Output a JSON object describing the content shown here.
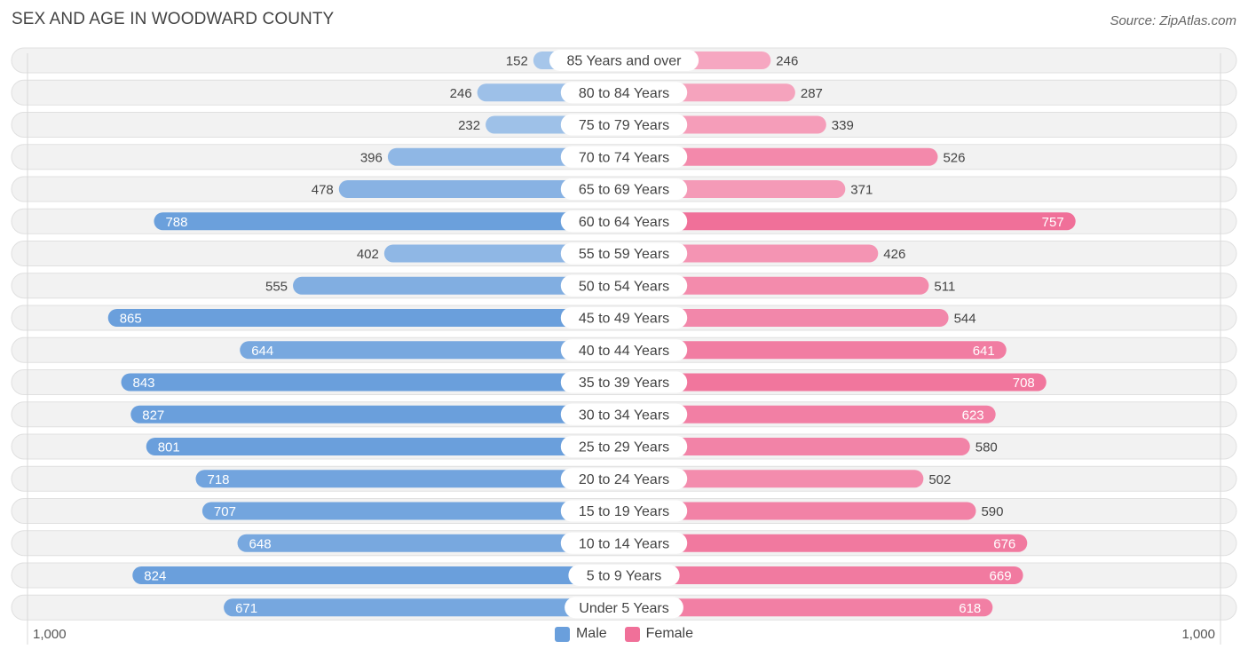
{
  "chart_data": {
    "type": "bar",
    "orientation": "horizontal-butterfly",
    "title": "SEX AND AGE IN WOODWARD COUNTY",
    "source": "Source: ZipAtlas.com",
    "categories": [
      "85 Years and over",
      "80 to 84 Years",
      "75 to 79 Years",
      "70 to 74 Years",
      "65 to 69 Years",
      "60 to 64 Years",
      "55 to 59 Years",
      "50 to 54 Years",
      "45 to 49 Years",
      "40 to 44 Years",
      "35 to 39 Years",
      "30 to 34 Years",
      "25 to 29 Years",
      "20 to 24 Years",
      "15 to 19 Years",
      "10 to 14 Years",
      "5 to 9 Years",
      "Under 5 Years"
    ],
    "series": [
      {
        "name": "Male",
        "color": "#6a9fdc",
        "color_light": "#a6c6ea",
        "values": [
          152,
          246,
          232,
          396,
          478,
          788,
          402,
          555,
          865,
          644,
          843,
          827,
          801,
          718,
          707,
          648,
          824,
          671
        ]
      },
      {
        "name": "Female",
        "color": "#f07099",
        "color_light": "#f6a8c1",
        "values": [
          246,
          287,
          339,
          526,
          371,
          757,
          426,
          511,
          544,
          641,
          708,
          623,
          580,
          502,
          590,
          676,
          669,
          618
        ]
      }
    ],
    "xlim": [
      -1000,
      1000
    ],
    "axis_labels": {
      "left": "1,000",
      "right": "1,000"
    },
    "legend": [
      {
        "label": "Male",
        "color": "#6a9fdc"
      },
      {
        "label": "Female",
        "color": "#f07099"
      }
    ],
    "legend_position": "bottom-center"
  }
}
